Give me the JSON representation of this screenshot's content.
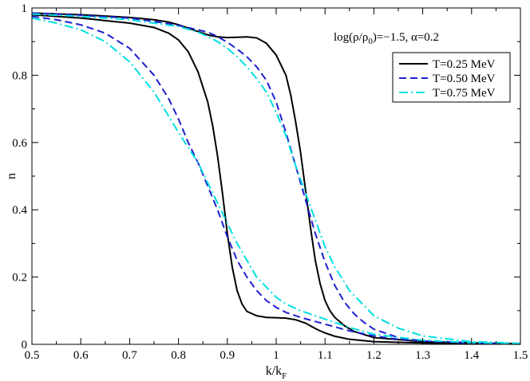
{
  "chart_data": {
    "type": "line",
    "xlabel": {
      "main": "k/k",
      "sub": "F"
    },
    "ylabel": "n",
    "xlim": [
      0.5,
      1.5
    ],
    "ylim": [
      0,
      1
    ],
    "xticks": [
      "0.5",
      "0.6",
      "0.7",
      "0.8",
      "0.9",
      "1",
      "1.1",
      "1.2",
      "1.3",
      "1.4",
      "1.5"
    ],
    "yticks": [
      "0",
      "0.2",
      "0.4",
      "0.6",
      "0.8",
      "1"
    ],
    "grid": false,
    "legend_position": "top-right",
    "annotation": {
      "prefix": "log(ρ/ρ",
      "sub": "0",
      "suffix": ")=−1.5, α=0.2"
    },
    "series": [
      {
        "name": "T=0.25 MeV",
        "color": "#000000",
        "style": "solid",
        "segments": [
          {
            "x": [
              0.5,
              0.6,
              0.7,
              0.75,
              0.78,
              0.8,
              0.82,
              0.84,
              0.86,
              0.87,
              0.88,
              0.89,
              0.9,
              0.91,
              0.92,
              0.93,
              0.94,
              0.96,
              0.98,
              1.0,
              1.02,
              1.04,
              1.05,
              1.06,
              1.07,
              1.08,
              1.09,
              1.1,
              1.12,
              1.15,
              1.2,
              1.3,
              1.4,
              1.5
            ],
            "y": [
              0.98,
              0.97,
              0.955,
              0.942,
              0.925,
              0.905,
              0.87,
              0.81,
              0.72,
              0.65,
              0.56,
              0.45,
              0.33,
              0.23,
              0.16,
              0.12,
              0.098,
              0.085,
              0.08,
              0.079,
              0.078,
              0.073,
              0.068,
              0.063,
              0.055,
              0.047,
              0.04,
              0.034,
              0.024,
              0.015,
              0.008,
              0.004,
              0.002,
              0.001
            ]
          },
          {
            "x": [
              0.5,
              0.6,
              0.7,
              0.75,
              0.78,
              0.8,
              0.82,
              0.84,
              0.86,
              0.88,
              0.9,
              0.92,
              0.94,
              0.96,
              0.98,
              1.0,
              1.02,
              1.03,
              1.04,
              1.05,
              1.06,
              1.07,
              1.08,
              1.09,
              1.1,
              1.11,
              1.12,
              1.14,
              1.16,
              1.2,
              1.3,
              1.4,
              1.5
            ],
            "y": [
              0.985,
              0.98,
              0.972,
              0.965,
              0.958,
              0.95,
              0.94,
              0.93,
              0.92,
              0.914,
              0.912,
              0.913,
              0.914,
              0.911,
              0.895,
              0.86,
              0.8,
              0.74,
              0.66,
              0.57,
              0.46,
              0.35,
              0.25,
              0.18,
              0.13,
              0.1,
              0.08,
              0.055,
              0.038,
              0.02,
              0.008,
              0.004,
              0.002
            ]
          }
        ]
      },
      {
        "name": "T=0.50 MeV",
        "color": "#1f1fd0",
        "style": "dashed",
        "segments": [
          {
            "x": [
              0.5,
              0.55,
              0.6,
              0.65,
              0.7,
              0.75,
              0.78,
              0.8,
              0.82,
              0.84,
              0.86,
              0.88,
              0.9,
              0.92,
              0.94,
              0.96,
              0.98,
              1.0,
              1.02,
              1.05,
              1.08,
              1.1,
              1.15,
              1.2,
              1.25,
              1.3,
              1.4,
              1.5
            ],
            "y": [
              0.975,
              0.965,
              0.95,
              0.925,
              0.88,
              0.8,
              0.73,
              0.67,
              0.6,
              0.54,
              0.47,
              0.4,
              0.32,
              0.25,
              0.2,
              0.16,
              0.13,
              0.11,
              0.095,
              0.08,
              0.068,
              0.06,
              0.04,
              0.025,
              0.015,
              0.01,
              0.005,
              0.002
            ]
          },
          {
            "x": [
              0.5,
              0.6,
              0.7,
              0.75,
              0.8,
              0.84,
              0.86,
              0.88,
              0.9,
              0.92,
              0.94,
              0.96,
              0.98,
              1.0,
              1.02,
              1.04,
              1.06,
              1.08,
              1.1,
              1.12,
              1.14,
              1.16,
              1.18,
              1.2,
              1.25,
              1.3,
              1.4,
              1.5
            ],
            "y": [
              0.985,
              0.978,
              0.97,
              0.96,
              0.948,
              0.935,
              0.928,
              0.915,
              0.898,
              0.878,
              0.855,
              0.825,
              0.785,
              0.72,
              0.63,
              0.53,
              0.43,
              0.33,
              0.245,
              0.175,
              0.125,
              0.09,
              0.065,
              0.045,
              0.02,
              0.01,
              0.004,
              0.002
            ]
          }
        ]
      },
      {
        "name": "T=0.75 MeV",
        "color": "#00e0e0",
        "style": "dashdot",
        "segments": [
          {
            "x": [
              0.5,
              0.55,
              0.6,
              0.65,
              0.7,
              0.75,
              0.8,
              0.84,
              0.86,
              0.88,
              0.9,
              0.92,
              0.94,
              0.96,
              0.98,
              1.0,
              1.02,
              1.05,
              1.08,
              1.1,
              1.15,
              1.2,
              1.3,
              1.4,
              1.5
            ],
            "y": [
              0.97,
              0.955,
              0.935,
              0.9,
              0.84,
              0.75,
              0.63,
              0.54,
              0.48,
              0.42,
              0.36,
              0.3,
              0.25,
              0.2,
              0.17,
              0.14,
              0.12,
              0.1,
              0.085,
              0.075,
              0.05,
              0.03,
              0.012,
              0.005,
              0.002
            ]
          },
          {
            "x": [
              0.5,
              0.6,
              0.7,
              0.8,
              0.84,
              0.86,
              0.88,
              0.9,
              0.92,
              0.94,
              0.96,
              0.98,
              1.0,
              1.02,
              1.04,
              1.06,
              1.08,
              1.1,
              1.12,
              1.15,
              1.2,
              1.25,
              1.3,
              1.4,
              1.5
            ],
            "y": [
              0.982,
              0.975,
              0.965,
              0.945,
              0.928,
              0.915,
              0.9,
              0.88,
              0.855,
              0.825,
              0.79,
              0.75,
              0.69,
              0.62,
              0.53,
              0.45,
              0.37,
              0.29,
              0.23,
              0.16,
              0.085,
              0.048,
              0.025,
              0.008,
              0.003
            ]
          }
        ]
      }
    ]
  }
}
